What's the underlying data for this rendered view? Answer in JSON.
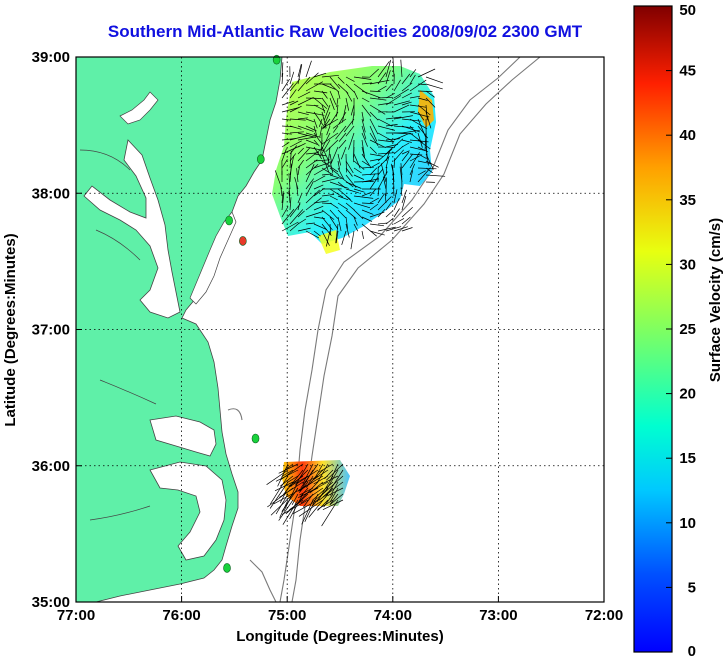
{
  "title": "Southern Mid-Atlantic Raw Velocities 2008/09/02 2300 GMT",
  "x_axis": {
    "label": "Longitude (Degrees:Minutes)",
    "ticks": [
      "77:00",
      "76:00",
      "75:00",
      "74:00",
      "73:00",
      "72:00"
    ]
  },
  "y_axis": {
    "label": "Latitude (Degrees:Minutes)",
    "ticks": [
      "39:00",
      "38:00",
      "37:00",
      "36:00",
      "35:00"
    ]
  },
  "colorbar": {
    "label": "Surface Velocity (cm/s)",
    "ticks": [
      "50",
      "45",
      "40",
      "35",
      "30",
      "25",
      "20",
      "15",
      "10",
      "5",
      "0"
    ],
    "min": 0,
    "max": 50
  },
  "map_extent": {
    "lon_west": -77,
    "lon_east": -72,
    "lat_south": 35,
    "lat_north": 39
  },
  "colors": {
    "land": "#5ff0a8",
    "title": "#1010e0",
    "station": "#19d23c",
    "station_off": "#e83a2a"
  },
  "stations": [
    {
      "lon": -75.1,
      "lat": 38.98,
      "status": "active"
    },
    {
      "lon": -75.55,
      "lat": 37.8,
      "status": "active"
    },
    {
      "lon": -75.25,
      "lat": 38.25,
      "status": "active"
    },
    {
      "lon": -75.3,
      "lat": 36.2,
      "status": "active"
    },
    {
      "lon": -75.57,
      "lat": 35.25,
      "status": "active"
    },
    {
      "lon": -75.42,
      "lat": 37.65,
      "status": "offline"
    }
  ]
}
